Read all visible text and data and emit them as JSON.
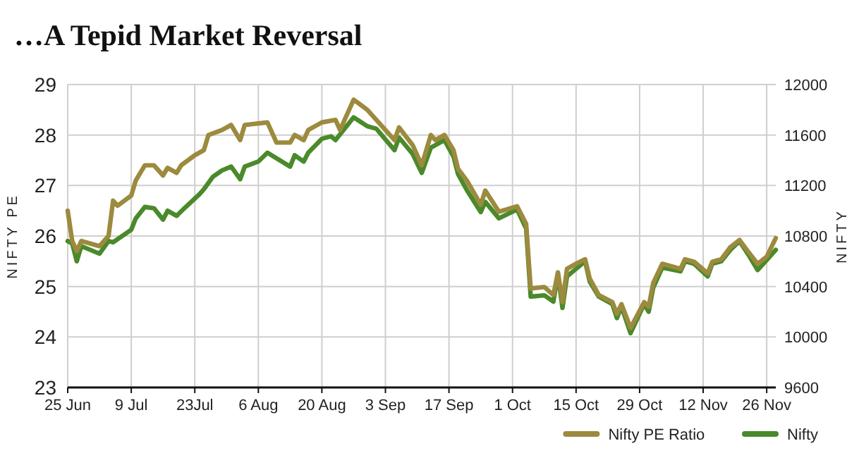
{
  "chart_data": {
    "type": "line",
    "title": "…A Tepid Market Reversal",
    "ylabel": "NIFTY PE",
    "y2label": "NIFTY",
    "xlim": [
      "--06-25",
      "--11-28"
    ],
    "xticks": [
      {
        "value": "--06-25",
        "label": "25 Jun"
      },
      {
        "value": "--07-09",
        "label": "9 Jul"
      },
      {
        "value": "--07-23",
        "label": "23Jul"
      },
      {
        "value": "--08-06",
        "label": "6 Aug"
      },
      {
        "value": "--08-20",
        "label": "20 Aug"
      },
      {
        "value": "--09-03",
        "label": "3 Sep"
      },
      {
        "value": "--09-17",
        "label": "17 Sep"
      },
      {
        "value": "--10-01",
        "label": "1 Oct"
      },
      {
        "value": "--10-15",
        "label": "15 Oct"
      },
      {
        "value": "--10-29",
        "label": "29 Oct"
      },
      {
        "value": "--11-12",
        "label": "12 Nov"
      },
      {
        "value": "--11-26",
        "label": "26 Nov"
      }
    ],
    "ylim": [
      23,
      29
    ],
    "yticks": [
      23,
      24,
      25,
      26,
      27,
      28,
      29
    ],
    "y2lim": [
      9600,
      12000
    ],
    "y2ticks": [
      9600,
      10000,
      10400,
      10800,
      11200,
      11600,
      12000
    ],
    "grid": true,
    "legend": "bottom right",
    "marker": "none",
    "line_style": "solid",
    "series": [
      {
        "name": "Nifty PE Ratio",
        "color": "#9c8a3e",
        "x": [
          "--06-25",
          "--06-26",
          "--06-27",
          "--06-28",
          "--07-02",
          "--07-04",
          "--07-05",
          "--07-06",
          "--07-09",
          "--07-10",
          "--07-12",
          "--07-14",
          "--07-16",
          "--07-17",
          "--07-19",
          "--07-20",
          "--07-23",
          "--07-25",
          "--07-26",
          "--07-29",
          "--07-31",
          "--08-02",
          "--08-03",
          "--08-08",
          "--08-10",
          "--08-13",
          "--08-14",
          "--08-16",
          "--08-17",
          "--08-20",
          "--08-23",
          "--08-24",
          "--08-27",
          "--08-30",
          "--09-05",
          "--09-06",
          "--09-09",
          "--09-11",
          "--09-13",
          "--09-14",
          "--09-16",
          "--09-18",
          "--09-19",
          "--09-21",
          "--09-24",
          "--09-25",
          "--09-28",
          "--10-02",
          "--10-04",
          "--10-05",
          "--10-08",
          "--10-10",
          "--10-11",
          "--10-12",
          "--10-13",
          "--10-15",
          "--10-17",
          "--10-18",
          "--10-20",
          "--10-23",
          "--10-24",
          "--10-25",
          "--10-27",
          "--10-30",
          "--10-31",
          "--11-01",
          "--11-03",
          "--11-07",
          "--11-08",
          "--11-10",
          "--11-13",
          "--11-14",
          "--11-16",
          "--11-18",
          "--11-20",
          "--11-22",
          "--11-24",
          "--11-26",
          "--11-28"
        ],
        "values": [
          26.5,
          25.9,
          25.7,
          25.9,
          25.8,
          26.0,
          26.7,
          26.6,
          26.8,
          27.1,
          27.4,
          27.4,
          27.2,
          27.35,
          27.25,
          27.4,
          27.6,
          27.7,
          28.0,
          28.1,
          28.2,
          27.9,
          28.2,
          28.25,
          27.85,
          27.85,
          28.0,
          27.9,
          28.1,
          28.25,
          28.3,
          28.1,
          28.7,
          28.5,
          27.9,
          28.15,
          27.8,
          27.4,
          28.0,
          27.9,
          28.0,
          27.7,
          27.33,
          27.09,
          26.62,
          26.9,
          26.48,
          26.59,
          26.24,
          24.96,
          24.99,
          24.83,
          25.28,
          24.69,
          25.35,
          25.45,
          25.54,
          25.16,
          24.83,
          24.69,
          24.46,
          24.65,
          24.18,
          24.69,
          24.6,
          25.07,
          25.45,
          25.35,
          25.54,
          25.49,
          25.26,
          25.49,
          25.54,
          25.78,
          25.92,
          25.68,
          25.45,
          25.59,
          25.96
        ]
      },
      {
        "name": "Nifty",
        "color": "#4a8a2a",
        "axis": "y2",
        "x": [
          "--06-25",
          "--06-26",
          "--06-27",
          "--06-28",
          "--07-02",
          "--07-04",
          "--07-05",
          "--07-09",
          "--07-10",
          "--07-12",
          "--07-14",
          "--07-16",
          "--07-17",
          "--07-19",
          "--07-21",
          "--07-24",
          "--07-25",
          "--07-27",
          "--07-29",
          "--07-31",
          "--08-02",
          "--08-03",
          "--08-06",
          "--08-08",
          "--08-13",
          "--08-14",
          "--08-16",
          "--08-17",
          "--08-20",
          "--08-22",
          "--08-23",
          "--08-27",
          "--08-30",
          "--09-01",
          "--09-05",
          "--09-06",
          "--09-09",
          "--09-11",
          "--09-13",
          "--09-14",
          "--09-16",
          "--09-18",
          "--09-19",
          "--09-21",
          "--09-24",
          "--09-25",
          "--09-28",
          "--10-02",
          "--10-04",
          "--10-05",
          "--10-08",
          "--10-10",
          "--10-11",
          "--10-12",
          "--10-13",
          "--10-15",
          "--10-17",
          "--10-18",
          "--10-20",
          "--10-23",
          "--10-24",
          "--10-25",
          "--10-27",
          "--10-30",
          "--10-31",
          "--11-01",
          "--11-03",
          "--11-07",
          "--11-08",
          "--11-10",
          "--11-13",
          "--11-14",
          "--11-16",
          "--11-18",
          "--11-20",
          "--11-22",
          "--11-24",
          "--11-26",
          "--11-28"
        ],
        "values": [
          10760,
          10740,
          10600,
          10720,
          10660,
          10760,
          10750,
          10850,
          10940,
          11030,
          11020,
          10930,
          11000,
          10960,
          11030,
          11130,
          11170,
          11270,
          11320,
          11350,
          11250,
          11350,
          11390,
          11460,
          11350,
          11440,
          11390,
          11460,
          11570,
          11590,
          11560,
          11740,
          11670,
          11650,
          11480,
          11580,
          11450,
          11300,
          11500,
          11520,
          11560,
          11430,
          11290,
          11160,
          10990,
          11070,
          10940,
          11010,
          10860,
          10320,
          10330,
          10280,
          10500,
          10230,
          10480,
          10540,
          10600,
          10440,
          10320,
          10260,
          10150,
          10240,
          10030,
          10260,
          10200,
          10390,
          10550,
          10520,
          10600,
          10580,
          10480,
          10580,
          10600,
          10690,
          10760,
          10650,
          10530,
          10610,
          10690
        ]
      }
    ]
  }
}
